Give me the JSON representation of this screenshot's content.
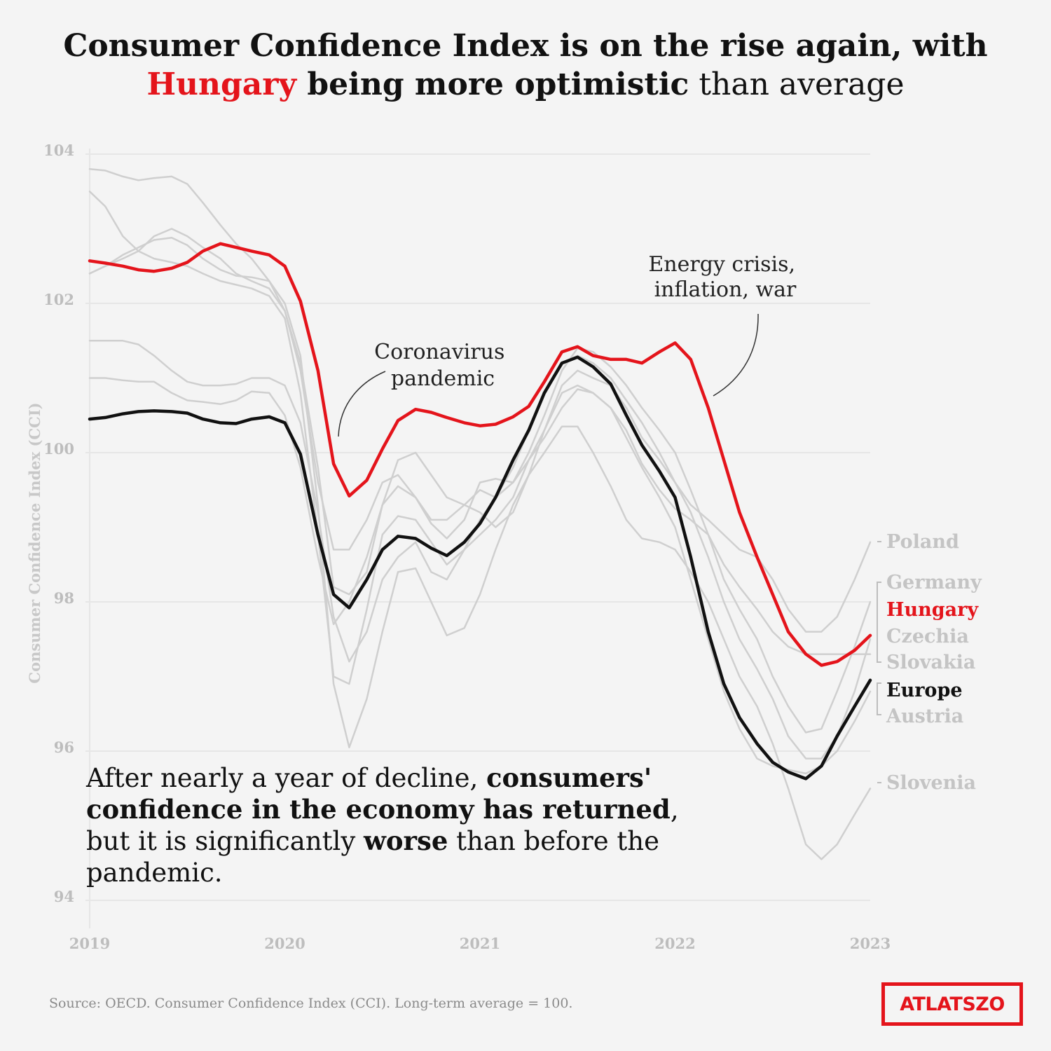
{
  "title": {
    "line1": "Consumer Confidence Index is on the rise again, with",
    "highlight": "Hungary",
    "line2_bold": " being more optimistic",
    "line2_rest": " than average"
  },
  "annotations": {
    "covid": [
      "Coronavirus",
      "pandemic"
    ],
    "energy": [
      "Energy crisis,",
      "inflation, war"
    ]
  },
  "callout": {
    "p1": "After nearly a year of decline, ",
    "b1": "consumers' confidence in the economy has returned",
    "p2": ", but it is significantly ",
    "b2": "worse",
    "p3": " than before the pandemic."
  },
  "source": "Source: OECD. Consumer Confidence Index (CCI). Long-term average = 100.",
  "logo": "ATLATSZO",
  "colors": {
    "highlight": "#e4141b",
    "europe": "#111111",
    "others": "#cfcfcf"
  },
  "chart_data": {
    "type": "line",
    "title": "",
    "ylabel": "Consumer Confidence Index (CCI)",
    "xlabel": "",
    "ylim": [
      94,
      104
    ],
    "yticks": [
      "94",
      "96",
      "98",
      "100",
      "102",
      "104"
    ],
    "xlim": [
      2019,
      2023
    ],
    "xticks": [
      "2019",
      "2020",
      "2021",
      "2022",
      "2023"
    ],
    "grid": "horizontal",
    "series": [
      {
        "name": "Poland",
        "color": "#cfcfcf",
        "label_y": 98.8,
        "x": [
          2019.0,
          2019.08,
          2019.17,
          2019.25,
          2019.33,
          2019.42,
          2019.5,
          2019.58,
          2019.67,
          2019.75,
          2019.83,
          2019.92,
          2020.0,
          2020.08,
          2020.17,
          2020.25,
          2020.33,
          2020.42,
          2020.5,
          2020.58,
          2020.67,
          2020.75,
          2020.83,
          2020.92,
          2021.0,
          2021.08,
          2021.17,
          2021.25,
          2021.33,
          2021.42,
          2021.5,
          2021.58,
          2021.67,
          2021.75,
          2021.83,
          2021.92,
          2022.0,
          2022.08,
          2022.17,
          2022.25,
          2022.33,
          2022.42,
          2022.5,
          2022.58,
          2022.67,
          2022.75,
          2022.83,
          2022.92,
          2023.0
        ],
        "y": [
          101.5,
          101.5,
          101.5,
          101.45,
          101.3,
          101.1,
          100.95,
          100.9,
          100.9,
          100.92,
          101.0,
          101.0,
          100.9,
          100.4,
          99.2,
          97.8,
          97.2,
          97.6,
          98.3,
          98.6,
          98.8,
          98.4,
          98.3,
          98.7,
          99.1,
          99.4,
          99.8,
          100.3,
          100.8,
          101.2,
          101.3,
          101.2,
          101.0,
          100.7,
          100.4,
          100.0,
          99.6,
          99.3,
          99.1,
          98.9,
          98.7,
          98.6,
          98.3,
          97.9,
          97.6,
          97.6,
          97.8,
          98.3,
          98.8
        ]
      },
      {
        "name": "Germany",
        "color": "#cfcfcf",
        "label_y": 98.3,
        "x": [
          2019.0,
          2019.08,
          2019.17,
          2019.25,
          2019.33,
          2019.42,
          2019.5,
          2019.58,
          2019.67,
          2019.75,
          2019.83,
          2019.92,
          2020.0,
          2020.08,
          2020.17,
          2020.25,
          2020.33,
          2020.42,
          2020.5,
          2020.58,
          2020.67,
          2020.75,
          2020.83,
          2020.92,
          2021.0,
          2021.08,
          2021.17,
          2021.25,
          2021.33,
          2021.42,
          2021.5,
          2021.58,
          2021.67,
          2021.75,
          2021.83,
          2021.92,
          2022.0,
          2022.08,
          2022.17,
          2022.25,
          2022.33,
          2022.42,
          2022.5,
          2022.58,
          2022.67,
          2022.75,
          2022.83,
          2022.92,
          2023.0
        ],
        "y": [
          103.8,
          103.78,
          103.7,
          103.65,
          103.68,
          103.7,
          103.6,
          103.35,
          103.05,
          102.8,
          102.6,
          102.3,
          101.9,
          101.2,
          99.8,
          98.2,
          98.1,
          98.4,
          99.3,
          99.9,
          100.0,
          99.7,
          99.4,
          99.3,
          99.5,
          99.4,
          99.6,
          100.0,
          100.5,
          101.1,
          101.4,
          101.35,
          101.15,
          100.9,
          100.6,
          100.3,
          100.0,
          99.5,
          98.9,
          98.3,
          97.9,
          97.5,
          97.0,
          96.6,
          96.25,
          96.3,
          96.8,
          97.4,
          98.0
        ]
      },
      {
        "name": "Czechia",
        "color": "#cfcfcf",
        "label_y": 97.5,
        "x": [
          2019.0,
          2019.08,
          2019.17,
          2019.25,
          2019.33,
          2019.42,
          2019.5,
          2019.58,
          2019.67,
          2019.75,
          2019.83,
          2019.92,
          2020.0,
          2020.08,
          2020.17,
          2020.25,
          2020.33,
          2020.42,
          2020.5,
          2020.58,
          2020.67,
          2020.75,
          2020.83,
          2020.92,
          2021.0,
          2021.08,
          2021.17,
          2021.25,
          2021.33,
          2021.42,
          2021.5,
          2021.58,
          2021.67,
          2021.75,
          2021.83,
          2021.92,
          2022.0,
          2022.08,
          2022.17,
          2022.25,
          2022.33,
          2022.42,
          2022.5,
          2022.58,
          2022.67,
          2022.75,
          2022.83,
          2022.92,
          2023.0
        ],
        "y": [
          102.4,
          102.5,
          102.6,
          102.7,
          102.9,
          103.0,
          102.9,
          102.75,
          102.6,
          102.4,
          102.3,
          102.2,
          101.9,
          101.1,
          99.6,
          98.7,
          98.7,
          99.1,
          99.6,
          99.7,
          99.4,
          99.1,
          99.1,
          99.3,
          99.2,
          99.0,
          99.2,
          99.7,
          100.3,
          100.9,
          101.1,
          101.0,
          100.9,
          100.6,
          100.2,
          99.9,
          99.6,
          99.2,
          98.6,
          98.0,
          97.5,
          97.1,
          96.7,
          96.2,
          95.9,
          95.9,
          96.2,
          96.8,
          97.5
        ]
      },
      {
        "name": "Slovakia",
        "color": "#cfcfcf",
        "label_y": 97.2,
        "x": [
          2019.0,
          2019.08,
          2019.17,
          2019.25,
          2019.33,
          2019.42,
          2019.5,
          2019.58,
          2019.67,
          2019.75,
          2019.83,
          2019.92,
          2020.0,
          2020.08,
          2020.17,
          2020.25,
          2020.33,
          2020.42,
          2020.5,
          2020.58,
          2020.67,
          2020.75,
          2020.83,
          2020.92,
          2021.0,
          2021.08,
          2021.17,
          2021.25,
          2021.33,
          2021.42,
          2021.5,
          2021.58,
          2021.67,
          2021.75,
          2021.83,
          2021.92,
          2022.0,
          2022.08,
          2022.17,
          2022.25,
          2022.33,
          2022.42,
          2022.5,
          2022.58,
          2022.67,
          2022.75,
          2022.83,
          2022.92,
          2023.0
        ],
        "y": [
          101.0,
          101.0,
          100.97,
          100.95,
          100.95,
          100.8,
          100.7,
          100.68,
          100.65,
          100.7,
          100.82,
          100.8,
          100.5,
          99.8,
          98.6,
          97.7,
          98.0,
          98.6,
          99.3,
          99.55,
          99.4,
          99.05,
          98.85,
          99.1,
          99.6,
          99.65,
          99.6,
          99.9,
          100.2,
          100.6,
          100.85,
          100.8,
          100.6,
          100.3,
          99.85,
          99.5,
          99.25,
          99.1,
          98.9,
          98.5,
          98.2,
          97.9,
          97.6,
          97.4,
          97.3,
          97.3,
          97.3,
          97.3,
          97.3
        ]
      },
      {
        "name": "Austria",
        "color": "#cfcfcf",
        "label_y": 96.8,
        "x": [
          2019.0,
          2019.08,
          2019.17,
          2019.25,
          2019.33,
          2019.42,
          2019.5,
          2019.58,
          2019.67,
          2019.75,
          2019.83,
          2019.92,
          2020.0,
          2020.08,
          2020.17,
          2020.25,
          2020.33,
          2020.42,
          2020.5,
          2020.58,
          2020.67,
          2020.75,
          2020.83,
          2020.92,
          2021.0,
          2021.08,
          2021.17,
          2021.25,
          2021.33,
          2021.42,
          2021.5,
          2021.58,
          2021.67,
          2021.75,
          2021.83,
          2021.92,
          2022.0,
          2022.08,
          2022.17,
          2022.25,
          2022.33,
          2022.42,
          2022.5,
          2022.58,
          2022.67,
          2022.75,
          2022.83,
          2022.92,
          2023.0
        ],
        "y": [
          103.5,
          103.3,
          102.9,
          102.7,
          102.6,
          102.55,
          102.5,
          102.4,
          102.3,
          102.25,
          102.2,
          102.1,
          101.8,
          100.8,
          98.9,
          97.0,
          96.9,
          97.9,
          98.9,
          99.15,
          99.1,
          98.8,
          98.5,
          98.7,
          98.9,
          99.1,
          99.4,
          99.9,
          100.3,
          100.8,
          100.9,
          100.8,
          100.6,
          100.2,
          99.8,
          99.4,
          99.0,
          98.3,
          97.5,
          96.8,
          96.3,
          95.9,
          95.8,
          95.75,
          95.7,
          95.8,
          96.0,
          96.4,
          96.8
        ]
      },
      {
        "name": "Slovenia",
        "color": "#cfcfcf",
        "label_y": 95.5,
        "x": [
          2019.0,
          2019.08,
          2019.17,
          2019.25,
          2019.33,
          2019.42,
          2019.5,
          2019.58,
          2019.67,
          2019.75,
          2019.83,
          2019.92,
          2020.0,
          2020.08,
          2020.17,
          2020.25,
          2020.33,
          2020.42,
          2020.5,
          2020.58,
          2020.67,
          2020.75,
          2020.83,
          2020.92,
          2021.0,
          2021.08,
          2021.17,
          2021.25,
          2021.33,
          2021.42,
          2021.5,
          2021.58,
          2021.67,
          2021.75,
          2021.83,
          2021.92,
          2022.0,
          2022.08,
          2022.17,
          2022.25,
          2022.33,
          2022.42,
          2022.5,
          2022.58,
          2022.67,
          2022.75,
          2022.83,
          2022.92,
          2023.0
        ],
        "y": [
          102.4,
          102.5,
          102.65,
          102.75,
          102.85,
          102.88,
          102.78,
          102.6,
          102.45,
          102.37,
          102.35,
          102.3,
          102.0,
          101.3,
          99.3,
          96.9,
          96.05,
          96.7,
          97.6,
          98.4,
          98.45,
          98.0,
          97.55,
          97.65,
          98.1,
          98.7,
          99.3,
          99.7,
          100.0,
          100.35,
          100.35,
          100.0,
          99.55,
          99.1,
          98.85,
          98.8,
          98.7,
          98.4,
          98.0,
          97.5,
          97.0,
          96.6,
          96.1,
          95.5,
          94.75,
          94.55,
          94.75,
          95.15,
          95.5
        ]
      },
      {
        "name": "Hungary",
        "color": "#e4141b",
        "label_y": 97.55,
        "x": [
          2019.0,
          2019.08,
          2019.17,
          2019.25,
          2019.33,
          2019.42,
          2019.5,
          2019.58,
          2019.67,
          2019.75,
          2019.83,
          2019.92,
          2020.0,
          2020.08,
          2020.17,
          2020.25,
          2020.33,
          2020.42,
          2020.5,
          2020.58,
          2020.67,
          2020.75,
          2020.83,
          2020.92,
          2021.0,
          2021.08,
          2021.17,
          2021.25,
          2021.33,
          2021.42,
          2021.5,
          2021.58,
          2021.67,
          2021.75,
          2021.83,
          2021.92,
          2022.0,
          2022.08,
          2022.17,
          2022.25,
          2022.33,
          2022.42,
          2022.5,
          2022.58,
          2022.67,
          2022.75,
          2022.83,
          2022.92,
          2023.0
        ],
        "y": [
          102.57,
          102.54,
          102.5,
          102.45,
          102.43,
          102.47,
          102.55,
          102.7,
          102.8,
          102.75,
          102.7,
          102.65,
          102.5,
          102.03,
          101.1,
          99.85,
          99.42,
          99.63,
          100.05,
          100.43,
          100.58,
          100.54,
          100.47,
          100.4,
          100.36,
          100.38,
          100.48,
          100.62,
          100.95,
          101.35,
          101.42,
          101.3,
          101.25,
          101.25,
          101.2,
          101.35,
          101.47,
          101.25,
          100.6,
          99.9,
          99.2,
          98.6,
          98.1,
          97.6,
          97.3,
          97.15,
          97.2,
          97.35,
          97.55
        ]
      },
      {
        "name": "Europe",
        "color": "#111111",
        "label_y": 96.95,
        "x": [
          2019.0,
          2019.08,
          2019.17,
          2019.25,
          2019.33,
          2019.42,
          2019.5,
          2019.58,
          2019.67,
          2019.75,
          2019.83,
          2019.92,
          2020.0,
          2020.08,
          2020.17,
          2020.25,
          2020.33,
          2020.42,
          2020.5,
          2020.58,
          2020.67,
          2020.75,
          2020.83,
          2020.92,
          2021.0,
          2021.08,
          2021.17,
          2021.25,
          2021.33,
          2021.42,
          2021.5,
          2021.58,
          2021.67,
          2021.75,
          2021.83,
          2021.92,
          2022.0,
          2022.08,
          2022.17,
          2022.25,
          2022.33,
          2022.42,
          2022.5,
          2022.58,
          2022.67,
          2022.75,
          2022.83,
          2022.92,
          2023.0
        ],
        "y": [
          100.45,
          100.47,
          100.52,
          100.55,
          100.56,
          100.55,
          100.53,
          100.45,
          100.4,
          100.39,
          100.45,
          100.48,
          100.4,
          99.98,
          98.9,
          98.1,
          97.92,
          98.3,
          98.7,
          98.88,
          98.85,
          98.72,
          98.62,
          98.8,
          99.05,
          99.4,
          99.9,
          100.3,
          100.8,
          101.2,
          101.28,
          101.15,
          100.92,
          100.5,
          100.1,
          99.75,
          99.4,
          98.6,
          97.6,
          96.9,
          96.45,
          96.1,
          95.85,
          95.72,
          95.63,
          95.8,
          96.2,
          96.6,
          96.95
        ]
      }
    ]
  }
}
